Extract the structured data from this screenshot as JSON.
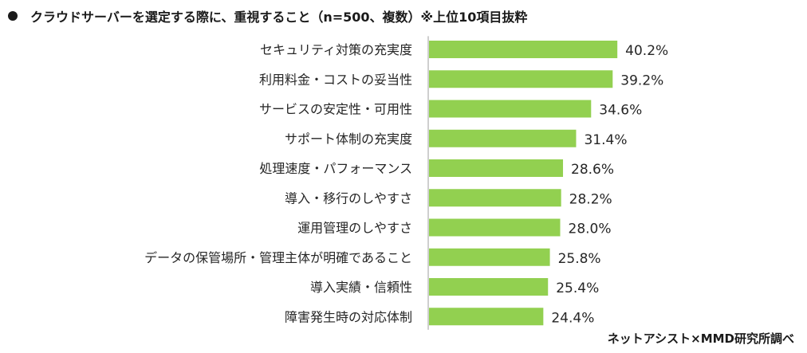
{
  "title": "クラウドサーバーを選定する際に、重視すること（n=500、複数）※上位10項目抜粋",
  "source": "ネットアシスト×MMD研究所調べ",
  "chart_data": {
    "type": "bar",
    "orientation": "horizontal",
    "title": "クラウドサーバーを選定する際に、重視すること（n=500、複数）※上位10項目抜粋",
    "categories": [
      "セキュリティ対策の充実度",
      "利用料金・コストの妥当性",
      "サービスの安定性・可用性",
      "サポート体制の充実度",
      "処理速度・パフォーマンス",
      "導入・移行のしやすさ",
      "運用管理のしやすさ",
      "データの保管場所・管理主体が明確であること",
      "導入実績・信頼性",
      "障害発生時の対応体制"
    ],
    "values": [
      40.2,
      39.2,
      34.6,
      31.4,
      28.6,
      28.2,
      28.0,
      25.8,
      25.4,
      24.4
    ],
    "value_labels": [
      "40.2%",
      "39.2%",
      "34.6%",
      "31.4%",
      "28.6%",
      "28.2%",
      "28.0%",
      "25.8%",
      "25.4%",
      "24.4%"
    ],
    "unit": "%",
    "bar_color": "#92d050",
    "axis_color": "#bfbfbf",
    "xlim": [
      0,
      100
    ],
    "legend": "none",
    "grid": false
  }
}
